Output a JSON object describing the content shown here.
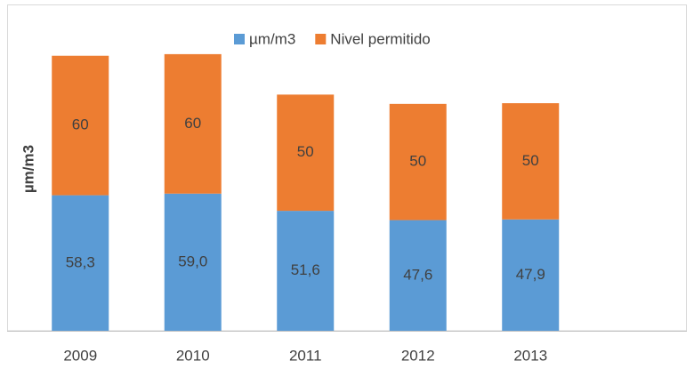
{
  "chart_data": {
    "type": "stacked-bar",
    "y_label": "µm/m3",
    "categories": [
      "2009",
      "2010",
      "2011",
      "2012",
      "2013"
    ],
    "series": [
      {
        "name": "µm/m3",
        "color": "#5b9bd5",
        "values": [
          58.3,
          59.0,
          51.6,
          47.6,
          47.9
        ],
        "value_labels": [
          "58,3",
          "59,0",
          "51,6",
          "47,6",
          "47,9"
        ]
      },
      {
        "name": "Nivel permitido",
        "color": "#ed7d31",
        "values": [
          60,
          60,
          50,
          50,
          50
        ]
      }
    ],
    "ylim": [
      0,
      140
    ],
    "legend": "top"
  }
}
